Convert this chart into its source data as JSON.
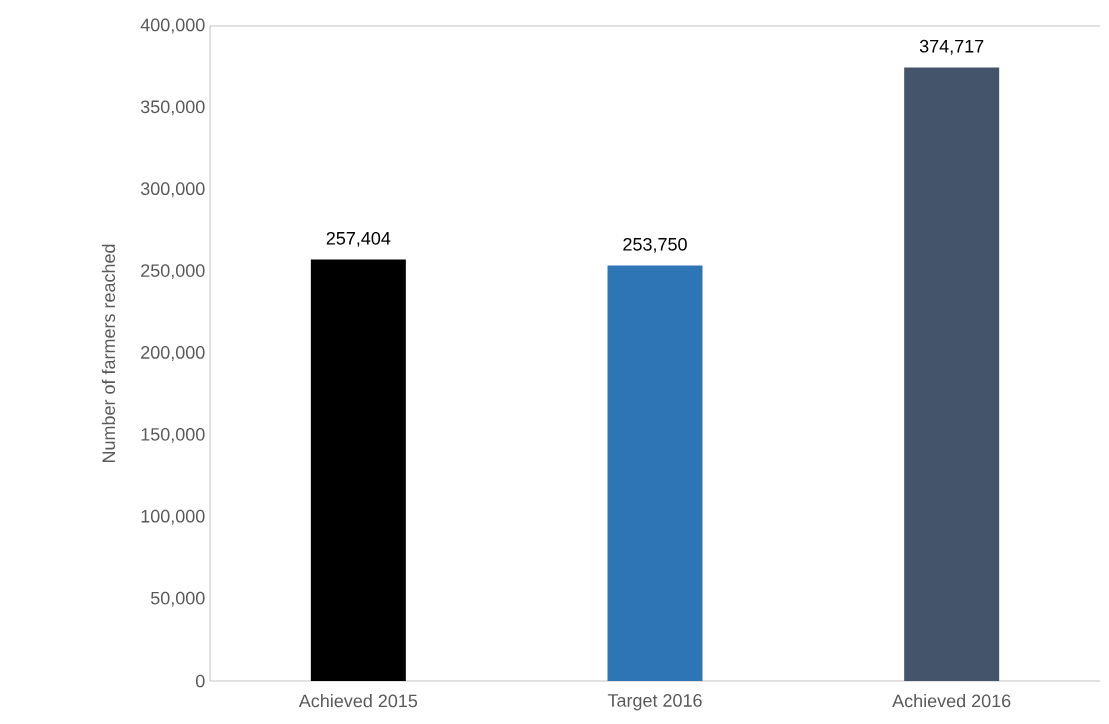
{
  "chart_data": {
    "type": "bar",
    "ylabel": "Number of farmers reached",
    "categories": [
      "Achieved 2015",
      "Target 2016",
      "Achieved 2016"
    ],
    "values": [
      257404,
      253750,
      374717
    ],
    "colors": [
      "#000000",
      "#2e75b6",
      "#44546a"
    ],
    "value_labels": [
      "257,404",
      "253,750",
      "374,717"
    ],
    "ylim": [
      0,
      400000
    ],
    "yticks": [
      {
        "value": 0,
        "label": "0"
      },
      {
        "value": 50000,
        "label": "50,000"
      },
      {
        "value": 100000,
        "label": "100,000"
      },
      {
        "value": 150000,
        "label": "150,000"
      },
      {
        "value": 200000,
        "label": "200,000"
      },
      {
        "value": 250000,
        "label": "250,000"
      },
      {
        "value": 300000,
        "label": "300,000"
      },
      {
        "value": 350000,
        "label": "350,000"
      },
      {
        "value": 400000,
        "label": "400,000"
      }
    ],
    "grid": false
  }
}
